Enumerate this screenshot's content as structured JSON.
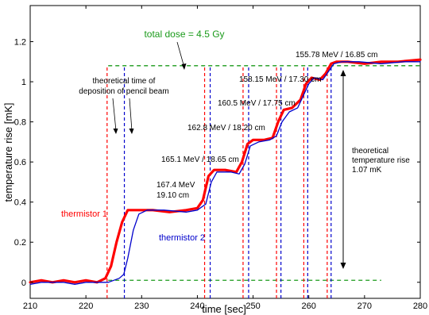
{
  "chart_data": {
    "type": "line",
    "xlabel": "time [sec]",
    "ylabel": "temperature rise [mK]",
    "xlim": [
      210,
      280
    ],
    "ylim": [
      -0.08,
      1.38
    ],
    "grid": false,
    "x_ticks": [
      210,
      220,
      230,
      240,
      250,
      260,
      270,
      280
    ],
    "y_ticks": [
      0,
      0.2,
      0.4,
      0.6,
      0.8,
      1,
      1.2
    ],
    "x_tick_labels": [
      "210",
      "220",
      "230",
      "240",
      "250",
      "260",
      "270",
      "280"
    ],
    "y_tick_labels": [
      "0",
      "0.2",
      "0.4",
      "0.6",
      "0.8",
      "1",
      "1.2"
    ],
    "series": [
      {
        "name": "thermistor 1",
        "color": "#ff0000",
        "points": [
          [
            210,
            0.0
          ],
          [
            212,
            0.01
          ],
          [
            214,
            0.0
          ],
          [
            216,
            0.01
          ],
          [
            218,
            0.0
          ],
          [
            220,
            0.01
          ],
          [
            222,
            0.0
          ],
          [
            223.5,
            0.02
          ],
          [
            224.5,
            0.08
          ],
          [
            225.5,
            0.2
          ],
          [
            226.5,
            0.3
          ],
          [
            227.5,
            0.36
          ],
          [
            229,
            0.36
          ],
          [
            232,
            0.36
          ],
          [
            235,
            0.35
          ],
          [
            238,
            0.36
          ],
          [
            240,
            0.37
          ],
          [
            241,
            0.41
          ],
          [
            242,
            0.53
          ],
          [
            243,
            0.56
          ],
          [
            245,
            0.56
          ],
          [
            247,
            0.55
          ],
          [
            248,
            0.6
          ],
          [
            249,
            0.69
          ],
          [
            250,
            0.71
          ],
          [
            252,
            0.71
          ],
          [
            253.5,
            0.72
          ],
          [
            254.5,
            0.8
          ],
          [
            255.5,
            0.86
          ],
          [
            257,
            0.87
          ],
          [
            258.5,
            0.91
          ],
          [
            259.5,
            0.99
          ],
          [
            260.5,
            1.02
          ],
          [
            262,
            1.01
          ],
          [
            263,
            1.04
          ],
          [
            264,
            1.09
          ],
          [
            265,
            1.1
          ],
          [
            267,
            1.1
          ],
          [
            270,
            1.09
          ],
          [
            273,
            1.1
          ],
          [
            276,
            1.1
          ],
          [
            280,
            1.11
          ]
        ]
      },
      {
        "name": "thermistor 2",
        "color": "#0000cc",
        "points": [
          [
            210,
            -0.01
          ],
          [
            212,
            0.0
          ],
          [
            214,
            0.0
          ],
          [
            216,
            0.0
          ],
          [
            218,
            -0.01
          ],
          [
            220,
            0.0
          ],
          [
            222,
            0.0
          ],
          [
            224,
            0.0
          ],
          [
            225,
            0.01
          ],
          [
            226,
            0.02
          ],
          [
            226.8,
            0.04
          ],
          [
            227.5,
            0.12
          ],
          [
            228.5,
            0.26
          ],
          [
            229.5,
            0.34
          ],
          [
            231,
            0.36
          ],
          [
            234,
            0.36
          ],
          [
            238,
            0.35
          ],
          [
            240,
            0.36
          ],
          [
            241.5,
            0.39
          ],
          [
            242.5,
            0.5
          ],
          [
            243.5,
            0.55
          ],
          [
            246,
            0.55
          ],
          [
            247.5,
            0.54
          ],
          [
            248.5,
            0.59
          ],
          [
            249.5,
            0.68
          ],
          [
            251,
            0.7
          ],
          [
            253,
            0.71
          ],
          [
            254.2,
            0.73
          ],
          [
            255.2,
            0.8
          ],
          [
            256.5,
            0.85
          ],
          [
            258,
            0.87
          ],
          [
            259,
            0.93
          ],
          [
            260,
            0.99
          ],
          [
            261,
            1.02
          ],
          [
            262.5,
            1.01
          ],
          [
            263.5,
            1.05
          ],
          [
            264.5,
            1.09
          ],
          [
            266,
            1.1
          ],
          [
            269,
            1.1
          ],
          [
            273,
            1.09
          ],
          [
            277,
            1.1
          ],
          [
            280,
            1.1
          ]
        ]
      }
    ],
    "reference_lines": [
      {
        "kind": "horizontal",
        "y": 1.08,
        "x_from": 224,
        "x_to": 280,
        "color": "#1a9a1a",
        "dash": true
      },
      {
        "kind": "horizontal",
        "y": 0.01,
        "x_from": 224,
        "x_to": 273,
        "color": "#1a9a1a",
        "dash": true
      }
    ],
    "deposition_times": [
      {
        "x": 223.8,
        "color": "#ff0000"
      },
      {
        "x": 226.9,
        "color": "#0000cc"
      },
      {
        "x": 241.3,
        "color": "#ff0000"
      },
      {
        "x": 242.3,
        "color": "#0000cc"
      },
      {
        "x": 248.2,
        "color": "#ff0000"
      },
      {
        "x": 249.2,
        "color": "#0000cc"
      },
      {
        "x": 254.2,
        "color": "#ff0000"
      },
      {
        "x": 255.0,
        "color": "#0000cc"
      },
      {
        "x": 259.1,
        "color": "#ff0000"
      },
      {
        "x": 259.8,
        "color": "#0000cc"
      },
      {
        "x": 263.3,
        "color": "#ff0000"
      },
      {
        "x": 264.0,
        "color": "#0000cc"
      }
    ],
    "deposition_line_y_range": [
      -0.08,
      1.08
    ],
    "annotations": {
      "total_dose": {
        "text": "total dose = 4.5 Gy",
        "color": "#1a9a1a"
      },
      "deposition_note": {
        "lines": [
          "theoretical time of",
          "deposition of pencil beam"
        ]
      },
      "energy_labels": [
        {
          "lines": [
            "167.4 MeV",
            "19.10 cm"
          ]
        },
        {
          "lines": [
            "165.1 MeV / 18.65 cm"
          ]
        },
        {
          "lines": [
            "162.8 MeV / 18.20 cm"
          ]
        },
        {
          "lines": [
            "160.5 MeV / 17.75 cm"
          ]
        },
        {
          "lines": [
            "158.15 MeV / 17.30 cm"
          ]
        },
        {
          "lines": [
            "155.78 MeV / 16.85 cm"
          ]
        }
      ],
      "theoretical_rise": {
        "lines": [
          "theoretical",
          "temperature rise",
          "1.07 mK"
        ]
      },
      "thermistor1_label": {
        "text": "thermistor 1",
        "color": "#ff0000"
      },
      "thermistor2_label": {
        "text": "thermistor 2",
        "color": "#0000cc"
      }
    }
  }
}
